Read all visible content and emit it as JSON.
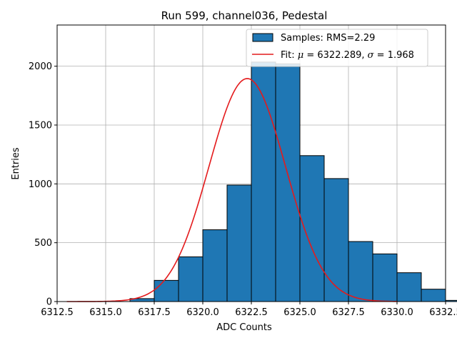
{
  "chart_data": {
    "type": "bar",
    "title": "Run 599, channel036, Pedestal",
    "xlabel": "ADC Counts",
    "ylabel": "Entries",
    "xlim": [
      6312.5,
      6332.5
    ],
    "ylim": [
      0,
      2350
    ],
    "xticks": [
      6312.5,
      6315.0,
      6317.5,
      6320.0,
      6322.5,
      6325.0,
      6327.5,
      6330.0,
      6332.5
    ],
    "xtick_labels": [
      "6312.5",
      "6315.0",
      "6317.5",
      "6320.0",
      "6322.5",
      "6325.0",
      "6327.5",
      "6330.0",
      "6332.5"
    ],
    "yticks": [
      0,
      500,
      1000,
      1500,
      2000
    ],
    "ytick_labels": [
      "0",
      "500",
      "1000",
      "1500",
      "2000"
    ],
    "grid": true,
    "legend_position": "top-right",
    "bin_width": 1.25,
    "bins": [
      {
        "left": 6316.25,
        "value": 25
      },
      {
        "left": 6317.5,
        "value": 180
      },
      {
        "left": 6318.75,
        "value": 380
      },
      {
        "left": 6320.0,
        "value": 610
      },
      {
        "left": 6321.25,
        "value": 990
      },
      {
        "left": 6322.5,
        "value": 2035
      },
      {
        "left": 6323.75,
        "value": 2020
      },
      {
        "left": 6325.0,
        "value": 1240
      },
      {
        "left": 6326.25,
        "value": 1045
      },
      {
        "left": 6327.5,
        "value": 510
      },
      {
        "left": 6328.75,
        "value": 405
      },
      {
        "left": 6330.0,
        "value": 245
      },
      {
        "left": 6331.25,
        "value": 105
      },
      {
        "left": 6332.5,
        "value": 10
      }
    ],
    "series": [
      {
        "name": "Samples",
        "kind": "histogram",
        "color": "#1f77b4",
        "edgecolor": "#000000"
      },
      {
        "name": "Fit",
        "kind": "gaussian",
        "color": "#e41a1c",
        "mu": 6322.289,
        "sigma": 1.968,
        "amplitude": 1895,
        "x_range": [
          6313.0,
          6330.0
        ]
      }
    ],
    "legend": [
      {
        "label": "Samples: RMS=2.29"
      },
      {
        "prefix": "Fit: ",
        "mu_symbol": "μ",
        "mu_text": " = 6322.289, ",
        "sigma_symbol": "σ",
        "sigma_text": " = 1.968"
      }
    ]
  }
}
